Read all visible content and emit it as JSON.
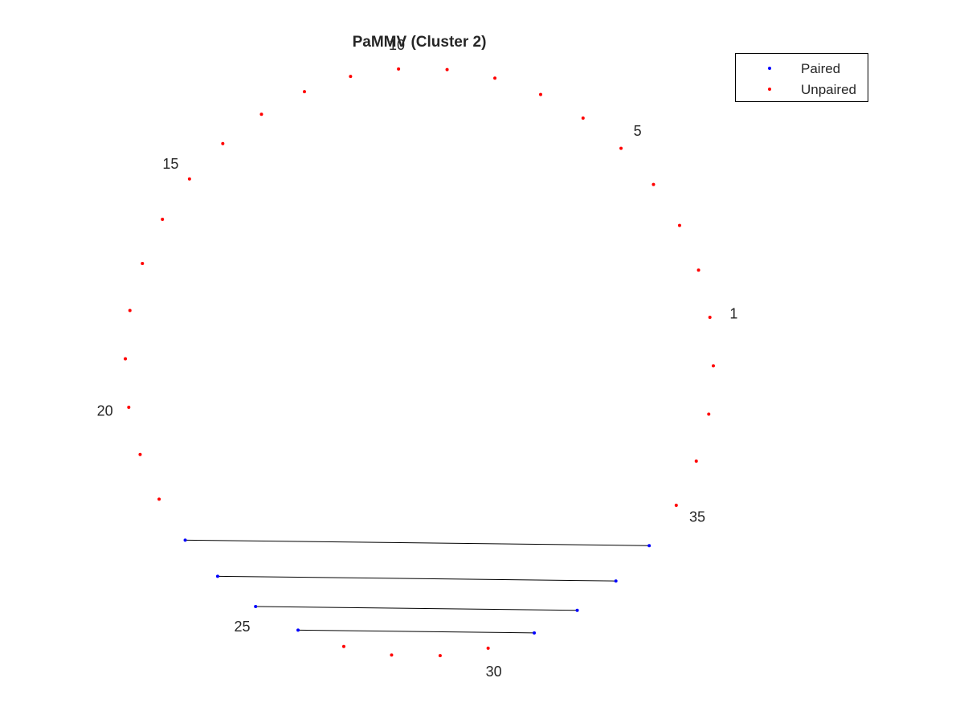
{
  "title": "PaMMV (Cluster 2)",
  "legend": {
    "placement": "top-right",
    "entries": [
      {
        "label": "Paired",
        "color": "#0000ff"
      },
      {
        "label": "Unpaired",
        "color": "#ff0000"
      }
    ]
  },
  "colors": {
    "paired": "#0000ff",
    "unpaired": "#ff0000",
    "pair_line": "#000000",
    "text": "#262626"
  },
  "chart_data": {
    "type": "arc-diagram-circular",
    "nucleotide_count": 38,
    "start_position": 1,
    "direction": "counterclockwise",
    "position_labels": [
      "1",
      "5",
      "10",
      "15",
      "20",
      "25",
      "30",
      "35"
    ],
    "paired_positions": [
      23,
      24,
      25,
      26,
      31,
      32,
      33,
      34
    ],
    "pairs": [
      [
        23,
        34
      ],
      [
        24,
        33
      ],
      [
        25,
        32
      ],
      [
        26,
        31
      ]
    ]
  }
}
